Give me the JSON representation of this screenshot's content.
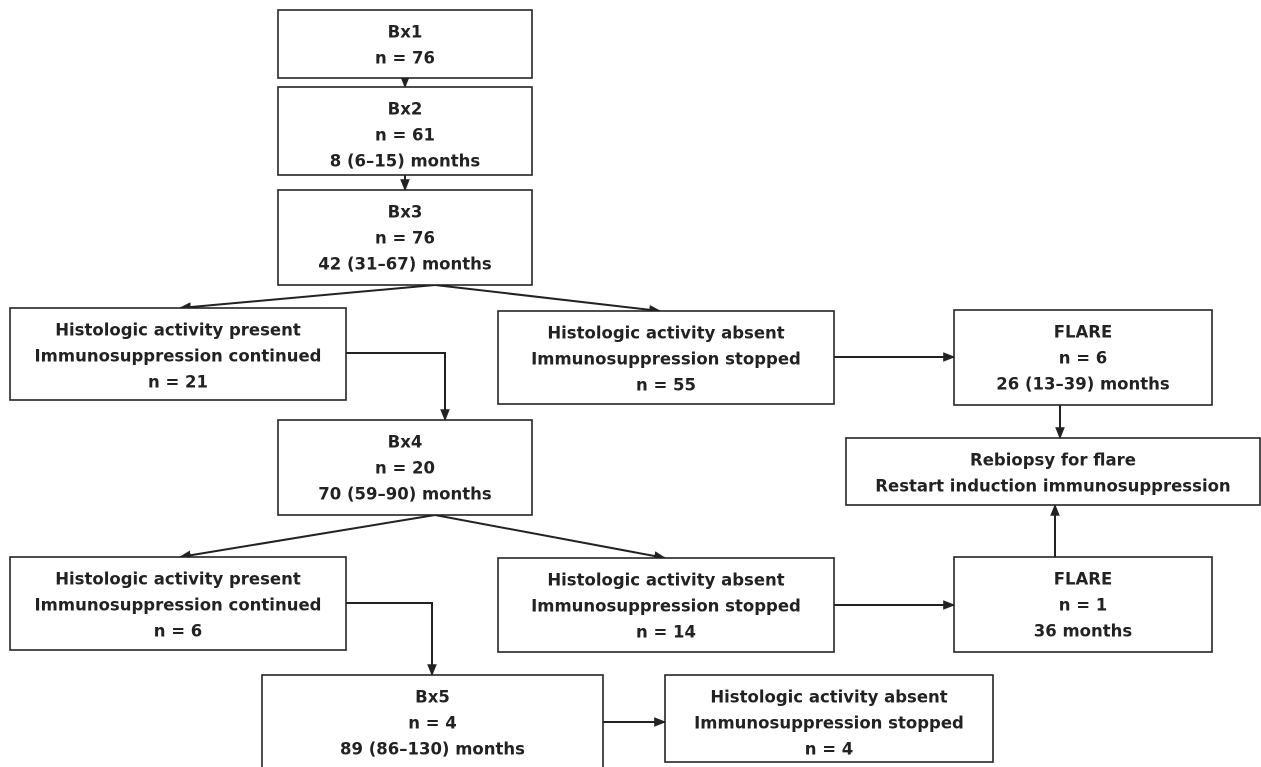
{
  "nodes": [
    {
      "lines": [
        "Bx1",
        "n = 76"
      ]
    },
    {
      "lines": [
        "Bx2",
        "n = 61",
        "8 (6–15) months"
      ]
    },
    {
      "lines": [
        "Bx3",
        "n = 76",
        "42 (31–67) months"
      ]
    },
    {
      "lines": [
        "Histologic activity present",
        "Immunosuppression continued",
        "n = 21"
      ]
    },
    {
      "lines": [
        "Histologic activity absent",
        "Immunosuppression stopped",
        "n = 55"
      ]
    },
    {
      "lines": [
        "FLARE",
        "n = 6",
        "26 (13–39) months"
      ]
    },
    {
      "lines": [
        "Bx4",
        "n = 20",
        "70 (59–90) months"
      ]
    },
    {
      "lines": [
        "Rebiopsy for flare",
        "Restart induction immunosuppression"
      ]
    },
    {
      "lines": [
        "Histologic activity present",
        "Immunosuppression continued",
        "n = 6"
      ]
    },
    {
      "lines": [
        "Histologic activity absent",
        "Immunosuppression stopped",
        "n = 14"
      ]
    },
    {
      "lines": [
        "FLARE",
        "n = 1",
        "36 months"
      ]
    },
    {
      "lines": [
        "Bx5",
        "n = 4",
        "89 (86–130) months"
      ]
    },
    {
      "lines": [
        "Histologic activity absent",
        "Immunosuppression stopped",
        "n = 4"
      ]
    }
  ]
}
